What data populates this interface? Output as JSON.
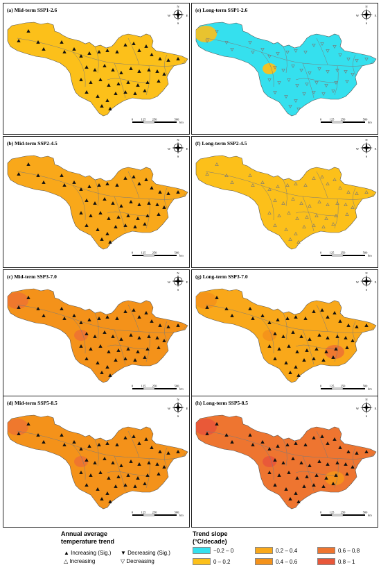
{
  "colors": {
    "neg": "#35e0ee",
    "c0": "#fcc01a",
    "c1": "#f9a81a",
    "c2": "#f4921a",
    "c3": "#ee7530",
    "c4": "#e8573a"
  },
  "panels": [
    {
      "id": "a",
      "title": "(a) Mid-term SSP1-2.6",
      "base": "c0",
      "marker": "inc_sig",
      "blobs": []
    },
    {
      "id": "e",
      "title": "(e) Long-term SSP1-2.6",
      "base": "neg",
      "marker": "dec",
      "blobs": [
        "c0"
      ]
    },
    {
      "id": "b",
      "title": "(b) Mid-term SSP2-4.5",
      "base": "c1",
      "marker": "inc_sig",
      "blobs": []
    },
    {
      "id": "f",
      "title": "(f) Long-term SSP2-4.5",
      "base": "c0",
      "marker": "inc",
      "blobs": []
    },
    {
      "id": "c",
      "title": "(c) Mid-term SSP3-7.0",
      "base": "c2",
      "marker": "inc_sig",
      "blobs": [
        "c3"
      ]
    },
    {
      "id": "g",
      "title": "(g) Long-term SSP3-7.0",
      "base": "c1",
      "marker": "inc_sig",
      "blobs": [
        "c2",
        "c3"
      ]
    },
    {
      "id": "d",
      "title": "(d) Mid-term SSP5-8.5",
      "base": "c2",
      "marker": "inc_sig",
      "blobs": [
        "c3"
      ]
    },
    {
      "id": "h",
      "title": "(h) Long-term SSP5-8.5",
      "base": "c3",
      "marker": "inc_sig",
      "blobs": [
        "c4",
        "c2"
      ]
    }
  ],
  "compass": {
    "n": "N",
    "s": "S",
    "e": "E",
    "w": "W"
  },
  "scale": {
    "ticks": [
      "0",
      "125",
      "250",
      "500"
    ],
    "unit": "km"
  },
  "legend": {
    "title_line1": "Annual average",
    "title_line2": "temperature trend",
    "items": [
      {
        "symbol": "▲",
        "label": "Increasing (Sig.)"
      },
      {
        "symbol": "▼",
        "label": "Decreasing (Sig.)"
      },
      {
        "symbol": "△",
        "label": "Increasing"
      },
      {
        "symbol": "▽",
        "label": "Decreasing"
      }
    ],
    "slope_title_line1": "Trend slope",
    "slope_title_line2": "(°C/decade)",
    "classes": [
      {
        "label": "−0.2 – 0",
        "color": "#35e0ee"
      },
      {
        "label": "0.2 – 0.4",
        "color": "#f9a81a"
      },
      {
        "label": "0.6 – 0.8",
        "color": "#ee7530"
      },
      {
        "label": "0 – 0.2",
        "color": "#fcc01a"
      },
      {
        "label": "0.4 – 0.6",
        "color": "#f4921a"
      },
      {
        "label": "0.8 – 1",
        "color": "#e8573a"
      }
    ]
  }
}
